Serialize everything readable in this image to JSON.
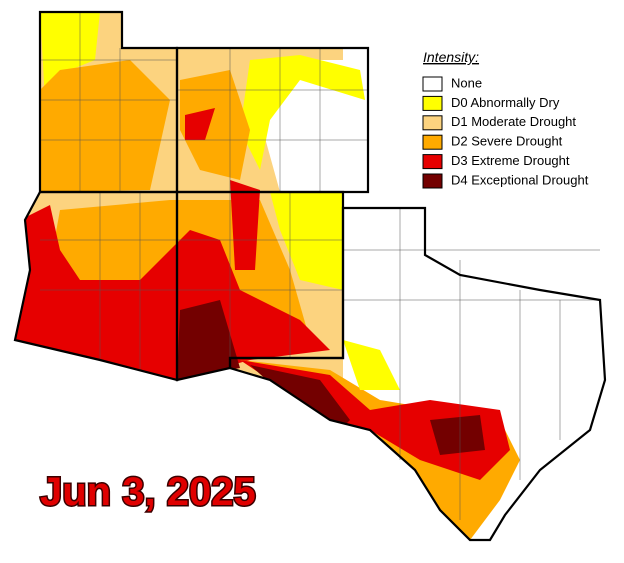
{
  "legend": {
    "title": "Intensity:",
    "items": [
      {
        "label": "None",
        "color": "#ffffff"
      },
      {
        "label": "D0 Abnormally Dry",
        "color": "#ffff00"
      },
      {
        "label": "D1 Moderate Drought",
        "color": "#fcd37f"
      },
      {
        "label": "D2 Severe Drought",
        "color": "#ffaa00"
      },
      {
        "label": "D3 Extreme Drought",
        "color": "#e60000"
      },
      {
        "label": "D4 Exceptional Drought",
        "color": "#730000"
      }
    ]
  },
  "date_label": "Jun 3, 2025"
}
